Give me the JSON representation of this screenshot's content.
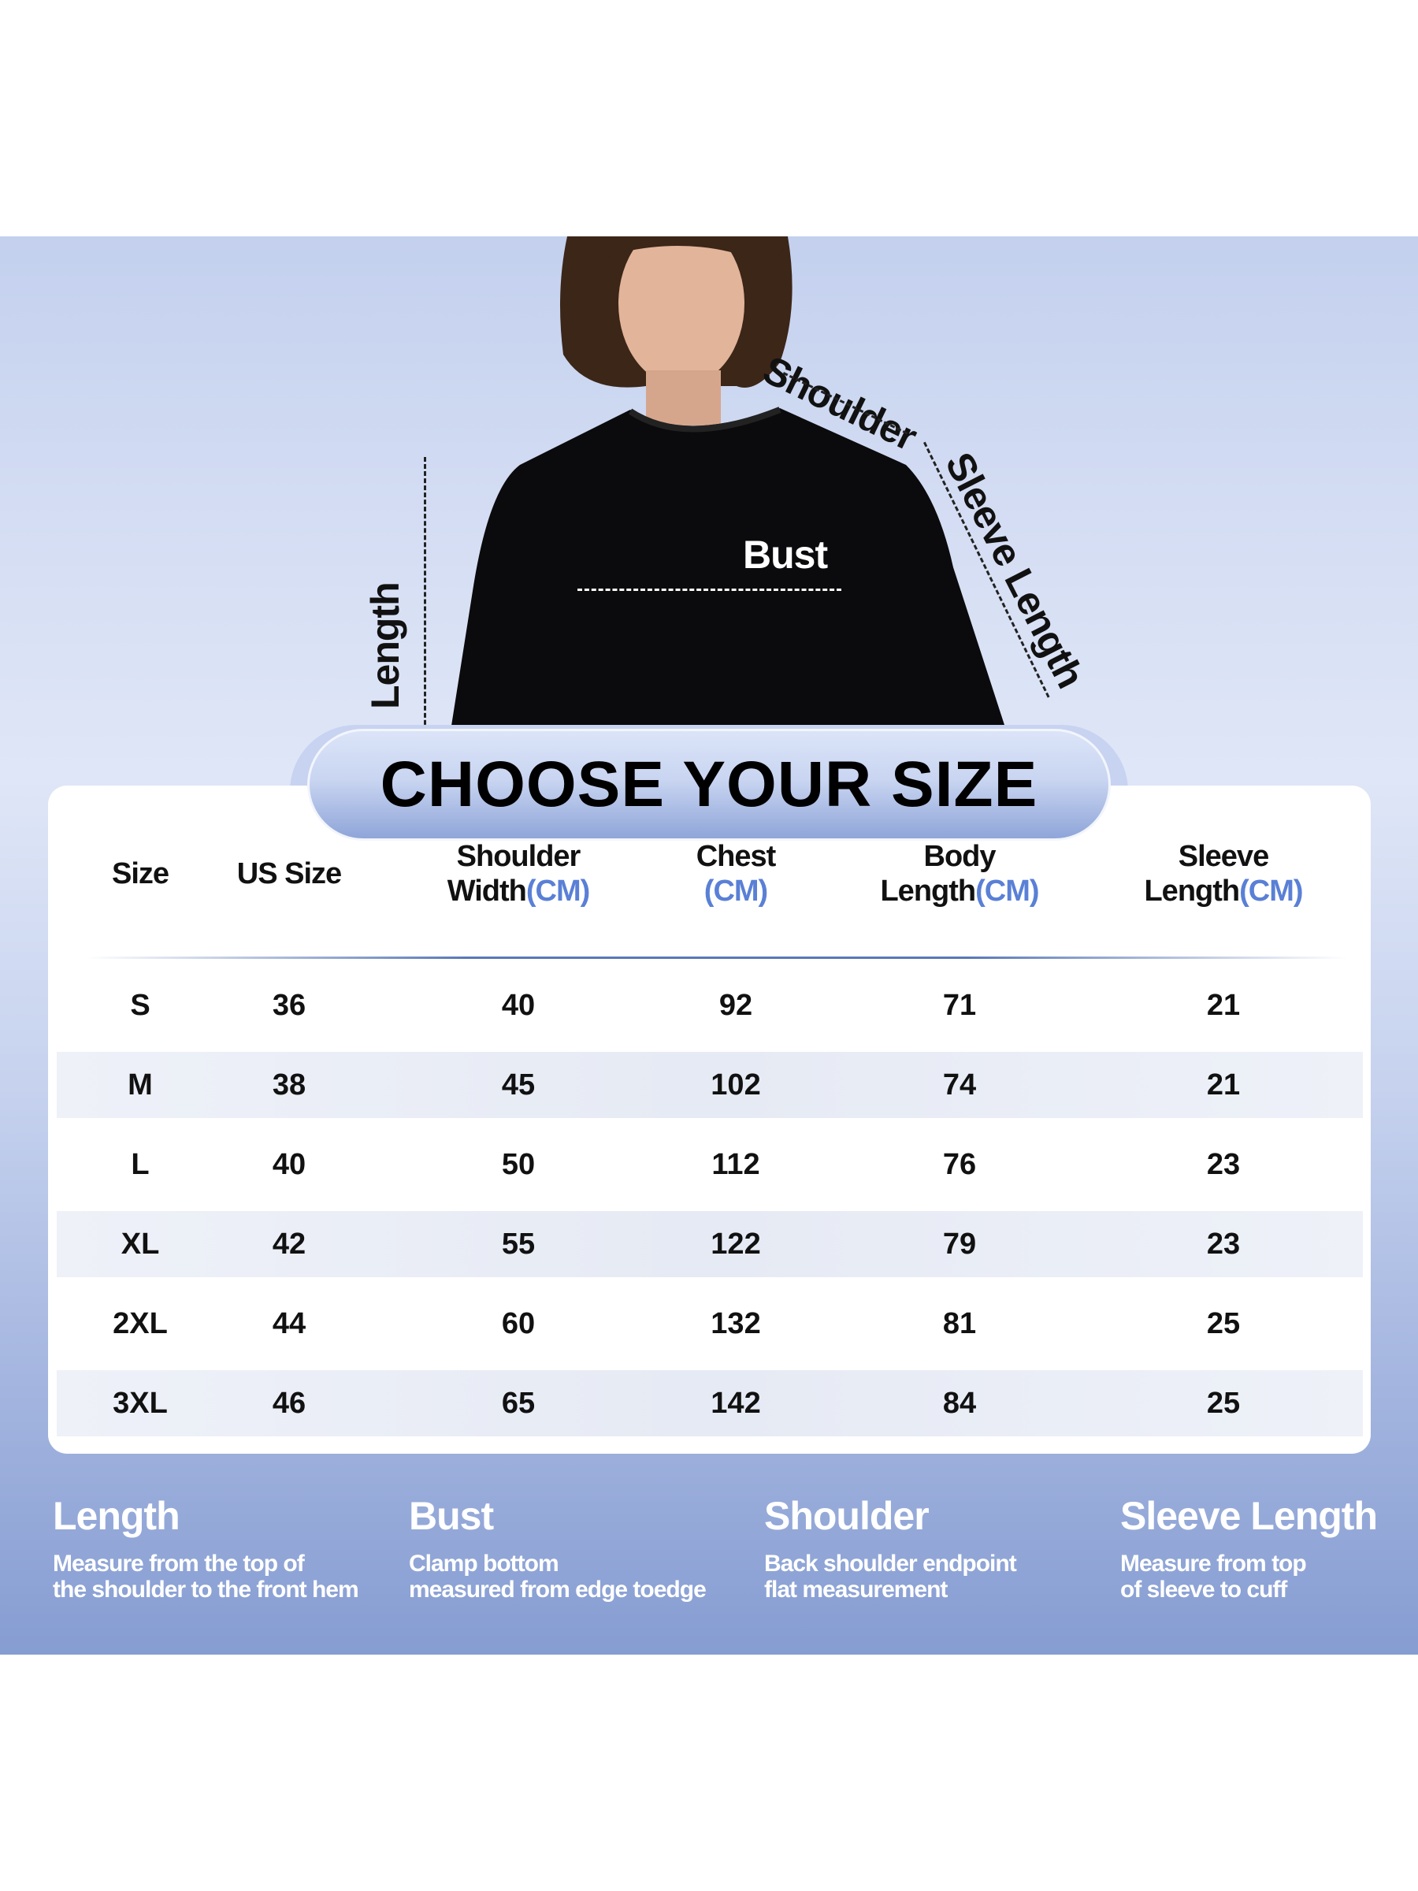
{
  "diagram": {
    "labels": {
      "shoulder": "Shoulder",
      "sleeve_length": "Sleeve Length",
      "bust": "Bust",
      "length": "Length"
    }
  },
  "title": "CHOOSE YOUR SIZE",
  "table": {
    "headers": [
      {
        "line1": "Size",
        "line2": "",
        "unit": ""
      },
      {
        "line1": "US Size",
        "line2": "",
        "unit": ""
      },
      {
        "line1": "Shoulder",
        "line2": "Width",
        "unit": "(CM)"
      },
      {
        "line1": "Chest",
        "line2": "",
        "unit": "(CM)"
      },
      {
        "line1": "Body",
        "line2": "Length",
        "unit": "(CM)"
      },
      {
        "line1": "Sleeve",
        "line2": "Length",
        "unit": "(CM)"
      }
    ],
    "rows": [
      [
        "S",
        "36",
        "40",
        "92",
        "71",
        "21"
      ],
      [
        "M",
        "38",
        "45",
        "102",
        "74",
        "21"
      ],
      [
        "L",
        "40",
        "50",
        "112",
        "76",
        "23"
      ],
      [
        "XL",
        "42",
        "55",
        "122",
        "79",
        "23"
      ],
      [
        "2XL",
        "44",
        "60",
        "132",
        "81",
        "25"
      ],
      [
        "3XL",
        "46",
        "65",
        "142",
        "84",
        "25"
      ]
    ],
    "unit_color": "#5a80d6"
  },
  "footer": [
    {
      "title": "Length",
      "line1": "Measure from the top of",
      "line2": "the shoulder to the front hem"
    },
    {
      "title": "Bust",
      "line1": "Clamp bottom",
      "line2": "measured from edge toedge"
    },
    {
      "title": "Shoulder",
      "line1": "Back shoulder endpoint",
      "line2": "flat measurement"
    },
    {
      "title": "Sleeve Length",
      "line1": "Measure from top",
      "line2": "of sleeve to cuff"
    }
  ]
}
